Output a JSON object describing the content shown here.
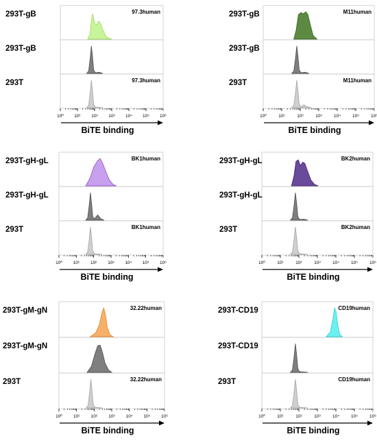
{
  "colors": {
    "axis": "#000000",
    "control_dark": "#7f7f7f",
    "control_light": "#cfcfcf",
    "panel_fills": [
      "#c8f59a",
      "#5d8a42",
      "#c9a0ee",
      "#6a4a9a",
      "#f6b06a",
      "#6ff0f0"
    ],
    "panel_strokes": [
      "#9fdc63",
      "#3e6a2b",
      "#9b5cd5",
      "#4a2a7a",
      "#e58a30",
      "#2cd6da"
    ]
  },
  "chart_data": [
    {
      "type": "area",
      "panel": "top-left",
      "x_scale": "log10",
      "xlim": [
        1,
        1000000
      ],
      "ylim": [
        0,
        1
      ],
      "xtick_labels": [
        "10⁰",
        "10¹",
        "10²",
        "10³",
        "10⁴",
        "10⁵",
        "10⁶"
      ],
      "xlabel": "BiTE binding",
      "rows": [
        {
          "label": "293T-gB",
          "annotation": "97.3human",
          "color_index": 0,
          "points": [
            [
              40,
              0
            ],
            [
              55,
              0.18
            ],
            [
              65,
              0.62
            ],
            [
              75,
              0.88
            ],
            [
              85,
              0.75
            ],
            [
              100,
              0.55
            ],
            [
              130,
              0.48
            ],
            [
              170,
              0.62
            ],
            [
              220,
              0.55
            ],
            [
              300,
              0.32
            ],
            [
              450,
              0.1
            ],
            [
              700,
              0.02
            ],
            [
              1000,
              0
            ]
          ]
        },
        {
          "label": "293T-gB",
          "annotation": "",
          "color_index": "control_dark",
          "points": [
            [
              35,
              0
            ],
            [
              45,
              0.08
            ],
            [
              55,
              0.5
            ],
            [
              65,
              0.95
            ],
            [
              75,
              0.6
            ],
            [
              88,
              0.12
            ],
            [
              110,
              0.02
            ],
            [
              180,
              0.04
            ],
            [
              300,
              0
            ]
          ]
        },
        {
          "label": "293T",
          "annotation": "97.3human",
          "color_index": "control_light",
          "points": [
            [
              35,
              0
            ],
            [
              45,
              0.08
            ],
            [
              55,
              0.5
            ],
            [
              65,
              0.95
            ],
            [
              75,
              0.6
            ],
            [
              88,
              0.12
            ],
            [
              110,
              0.02
            ],
            [
              300,
              0
            ]
          ]
        }
      ]
    },
    {
      "type": "area",
      "panel": "top-right",
      "x_scale": "log10",
      "xlim": [
        1,
        1000000
      ],
      "ylim": [
        0,
        1
      ],
      "xtick_labels": [
        "10⁰",
        "10¹",
        "10²",
        "10³",
        "10⁴",
        "10⁵",
        "10⁶"
      ],
      "xlabel": "BiTE binding",
      "rows": [
        {
          "label": "293T-gB",
          "annotation": "M11human",
          "color_index": 1,
          "points": [
            [
              45,
              0
            ],
            [
              60,
              0.3
            ],
            [
              80,
              0.85
            ],
            [
              110,
              0.92
            ],
            [
              150,
              0.88
            ],
            [
              200,
              0.95
            ],
            [
              260,
              0.85
            ],
            [
              350,
              0.5
            ],
            [
              500,
              0.12
            ],
            [
              800,
              0
            ]
          ]
        },
        {
          "label": "293T-gB",
          "annotation": "",
          "color_index": "control_dark",
          "points": [
            [
              35,
              0
            ],
            [
              45,
              0.08
            ],
            [
              55,
              0.5
            ],
            [
              65,
              0.95
            ],
            [
              75,
              0.6
            ],
            [
              88,
              0.12
            ],
            [
              110,
              0.02
            ],
            [
              180,
              0.04
            ],
            [
              300,
              0
            ]
          ]
        },
        {
          "label": "293T",
          "annotation": "M11human",
          "color_index": "control_light",
          "points": [
            [
              35,
              0
            ],
            [
              45,
              0.08
            ],
            [
              55,
              0.5
            ],
            [
              65,
              0.95
            ],
            [
              75,
              0.6
            ],
            [
              88,
              0.12
            ],
            [
              110,
              0.02
            ],
            [
              160,
              0.1
            ],
            [
              230,
              0.03
            ],
            [
              400,
              0
            ]
          ]
        }
      ]
    },
    {
      "type": "area",
      "panel": "middle-left",
      "x_scale": "log10",
      "xlim": [
        1,
        1000000
      ],
      "ylim": [
        0,
        1
      ],
      "xtick_labels": [
        "10⁰",
        "10¹",
        "10²",
        "10³",
        "10⁴",
        "10⁵",
        "10⁶"
      ],
      "xlabel": "BiTE binding",
      "rows": [
        {
          "label": "293T-gH-gL",
          "annotation": "BK1human",
          "color_index": 2,
          "points": [
            [
              35,
              0
            ],
            [
              60,
              0.25
            ],
            [
              100,
              0.65
            ],
            [
              160,
              0.85
            ],
            [
              230,
              0.95
            ],
            [
              320,
              0.8
            ],
            [
              500,
              0.5
            ],
            [
              800,
              0.2
            ],
            [
              1300,
              0.05
            ],
            [
              2000,
              0
            ]
          ]
        },
        {
          "label": "293T-gH-gL",
          "annotation": "",
          "color_index": "control_dark",
          "points": [
            [
              35,
              0
            ],
            [
              45,
              0.08
            ],
            [
              55,
              0.5
            ],
            [
              65,
              0.95
            ],
            [
              75,
              0.6
            ],
            [
              88,
              0.12
            ],
            [
              110,
              0.04
            ],
            [
              170,
              0.18
            ],
            [
              260,
              0.04
            ],
            [
              400,
              0
            ]
          ]
        },
        {
          "label": "293T",
          "annotation": "BK1human",
          "color_index": "control_light",
          "points": [
            [
              35,
              0
            ],
            [
              45,
              0.08
            ],
            [
              55,
              0.5
            ],
            [
              65,
              0.95
            ],
            [
              75,
              0.6
            ],
            [
              88,
              0.12
            ],
            [
              110,
              0.02
            ],
            [
              300,
              0
            ]
          ]
        }
      ]
    },
    {
      "type": "area",
      "panel": "middle-right",
      "x_scale": "log10",
      "xlim": [
        1,
        1000000
      ],
      "ylim": [
        0,
        1
      ],
      "xtick_labels": [
        "10⁰",
        "10¹",
        "10²",
        "10³",
        "10⁴",
        "10⁵",
        "10⁶"
      ],
      "xlabel": "BiTE binding",
      "rows": [
        {
          "label": "293T-gH-gL",
          "annotation": "BK2human",
          "color_index": 3,
          "points": [
            [
              40,
              0
            ],
            [
              55,
              0.35
            ],
            [
              70,
              0.85
            ],
            [
              95,
              0.9
            ],
            [
              120,
              0.7
            ],
            [
              160,
              0.82
            ],
            [
              210,
              0.78
            ],
            [
              300,
              0.5
            ],
            [
              450,
              0.2
            ],
            [
              700,
              0.05
            ],
            [
              1100,
              0
            ]
          ]
        },
        {
          "label": "293T-gH-gL",
          "annotation": "",
          "color_index": "control_dark",
          "points": [
            [
              35,
              0
            ],
            [
              45,
              0.08
            ],
            [
              55,
              0.5
            ],
            [
              65,
              0.95
            ],
            [
              75,
              0.6
            ],
            [
              88,
              0.12
            ],
            [
              110,
              0.02
            ],
            [
              180,
              0.03
            ],
            [
              300,
              0
            ]
          ]
        },
        {
          "label": "293T",
          "annotation": "BK2human",
          "color_index": "control_light",
          "points": [
            [
              35,
              0
            ],
            [
              45,
              0.08
            ],
            [
              55,
              0.5
            ],
            [
              65,
              0.95
            ],
            [
              75,
              0.6
            ],
            [
              88,
              0.12
            ],
            [
              110,
              0.02
            ],
            [
              300,
              0
            ]
          ]
        }
      ]
    },
    {
      "type": "area",
      "panel": "bottom-left",
      "x_scale": "log10",
      "xlim": [
        1,
        1000000
      ],
      "ylim": [
        0,
        1
      ],
      "xtick_labels": [
        "10⁰",
        "10¹",
        "10²",
        "10³",
        "10⁴",
        "10⁵",
        "10⁶"
      ],
      "xlabel": "BiTE binding",
      "rows": [
        {
          "label": "293T-gM-gN",
          "annotation": "32.22human",
          "color_index": 4,
          "points": [
            [
              60,
              0
            ],
            [
              120,
              0.12
            ],
            [
              200,
              0.4
            ],
            [
              280,
              0.8
            ],
            [
              350,
              0.95
            ],
            [
              430,
              0.75
            ],
            [
              560,
              0.3
            ],
            [
              800,
              0.06
            ],
            [
              1200,
              0
            ]
          ]
        },
        {
          "label": "293T-gM-gN",
          "annotation": "",
          "color_index": "control_dark",
          "points": [
            [
              40,
              0
            ],
            [
              70,
              0.2
            ],
            [
              110,
              0.6
            ],
            [
              160,
              0.88
            ],
            [
              220,
              0.9
            ],
            [
              300,
              0.65
            ],
            [
              420,
              0.3
            ],
            [
              650,
              0.08
            ],
            [
              1000,
              0
            ]
          ]
        },
        {
          "label": "293T",
          "annotation": "32.22human",
          "color_index": "control_light",
          "points": [
            [
              35,
              0
            ],
            [
              45,
              0.08
            ],
            [
              55,
              0.5
            ],
            [
              65,
              0.95
            ],
            [
              75,
              0.6
            ],
            [
              88,
              0.12
            ],
            [
              110,
              0.02
            ],
            [
              300,
              0
            ]
          ]
        }
      ]
    },
    {
      "type": "area",
      "panel": "bottom-right",
      "x_scale": "log10",
      "xlim": [
        1,
        1000000
      ],
      "ylim": [
        0,
        1
      ],
      "xtick_labels": [
        "10⁰",
        "10¹",
        "10²",
        "10³",
        "10⁴",
        "10⁵",
        "10⁶"
      ],
      "xlabel": "BiTE binding",
      "rows": [
        {
          "label": "293T-CD19",
          "annotation": "CD19human",
          "color_index": 5,
          "points": [
            [
              3000,
              0
            ],
            [
              5000,
              0.15
            ],
            [
              7000,
              0.6
            ],
            [
              8500,
              0.95
            ],
            [
              10000,
              0.85
            ],
            [
              12500,
              0.4
            ],
            [
              16000,
              0.08
            ],
            [
              22000,
              0
            ]
          ]
        },
        {
          "label": "293T-CD19",
          "annotation": "",
          "color_index": "control_dark",
          "points": [
            [
              35,
              0
            ],
            [
              45,
              0.08
            ],
            [
              55,
              0.5
            ],
            [
              65,
              0.95
            ],
            [
              75,
              0.6
            ],
            [
              88,
              0.12
            ],
            [
              110,
              0.02
            ],
            [
              300,
              0
            ]
          ]
        },
        {
          "label": "293T",
          "annotation": "CD19human",
          "color_index": "control_light",
          "points": [
            [
              35,
              0
            ],
            [
              45,
              0.08
            ],
            [
              55,
              0.5
            ],
            [
              65,
              0.95
            ],
            [
              75,
              0.6
            ],
            [
              88,
              0.12
            ],
            [
              110,
              0.02
            ],
            [
              300,
              0
            ]
          ]
        }
      ]
    }
  ]
}
